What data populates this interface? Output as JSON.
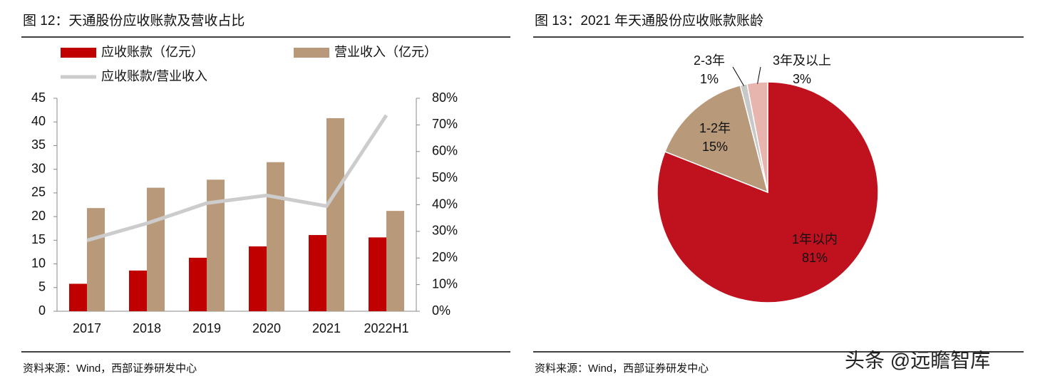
{
  "chart_data": [
    {
      "type": "bar",
      "title": "图 12：天通股份应收账款及营收占比",
      "source": "资料来源：Wind，西部证券研发中心",
      "categories": [
        "2017",
        "2018",
        "2019",
        "2020",
        "2021",
        "2022H1"
      ],
      "series": [
        {
          "name": "应收账款（亿元）",
          "color": "#c00000",
          "values": [
            5.8,
            8.6,
            11.3,
            13.7,
            16.1,
            15.6
          ]
        },
        {
          "name": "营业收入（亿元）",
          "color": "#b89a7a",
          "values": [
            21.8,
            26.1,
            27.8,
            31.5,
            40.8,
            21.2
          ]
        },
        {
          "name": "应收账款/营业收入",
          "color": "#cccccc",
          "type": "line",
          "axis": "y2",
          "values": [
            26.6,
            33,
            40.6,
            43.5,
            39.5,
            73.6
          ]
        }
      ],
      "ylim": [
        0,
        45
      ],
      "yticks": [
        0,
        5,
        10,
        15,
        20,
        25,
        30,
        35,
        40,
        45
      ],
      "y2lim": [
        0,
        80
      ],
      "y2ticks": [
        {
          "value": 0,
          "label": "0%"
        },
        {
          "value": 10,
          "label": "10%"
        },
        {
          "value": 20,
          "label": "20%"
        },
        {
          "value": 30,
          "label": "30%"
        },
        {
          "value": 40,
          "label": "40%"
        },
        {
          "value": 50,
          "label": "50%"
        },
        {
          "value": 60,
          "label": "60%"
        },
        {
          "value": 70,
          "label": "70%"
        },
        {
          "value": 80,
          "label": "80%"
        }
      ],
      "grid": false
    },
    {
      "type": "pie",
      "title": "图 13：2021 年天通股份应收账款账龄",
      "source": "资料来源：Wind，西部证券研发中心",
      "categories": [
        "1年以内",
        "1-2年",
        "2-3年",
        "3年及以上"
      ],
      "values": [
        81,
        15,
        1,
        3
      ],
      "value_labels": [
        "81%",
        "15%",
        "1%",
        "3%"
      ],
      "colors": [
        "#c0111f",
        "#b89a7a",
        "#c8c8c8",
        "#e8b4ae"
      ],
      "watermark": "头条 @远瞻智库"
    }
  ]
}
